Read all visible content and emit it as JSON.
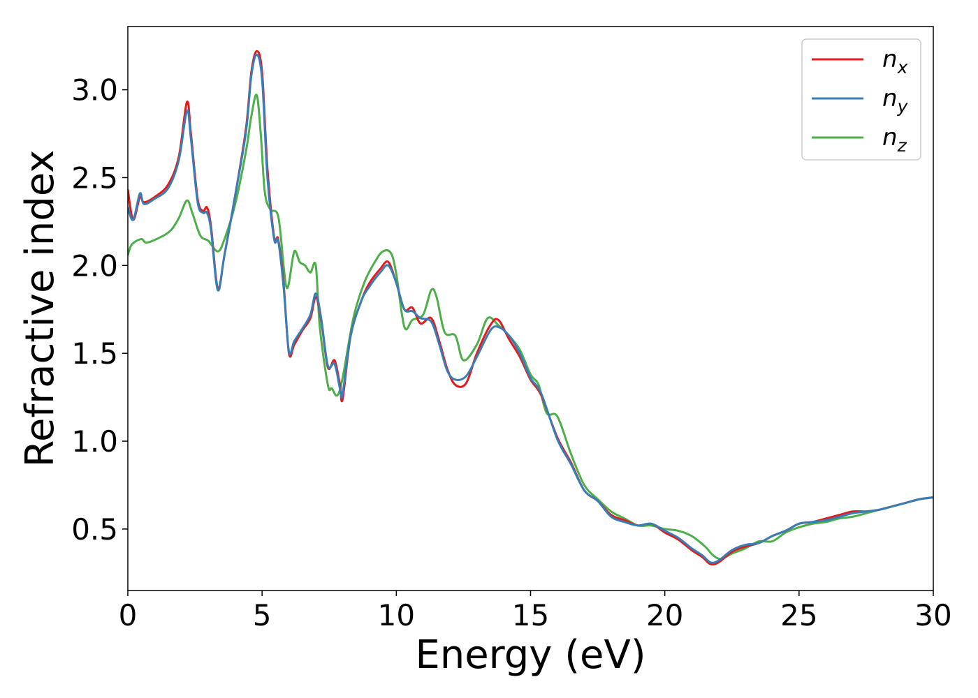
{
  "chart_data": {
    "type": "line",
    "title": "",
    "xlabel": "Energy (eV)",
    "ylabel": "Refractive index",
    "xlim": [
      0,
      30
    ],
    "ylim": [
      0.15,
      3.36
    ],
    "xticks": [
      0,
      5,
      10,
      15,
      20,
      25,
      30
    ],
    "xtick_labels": [
      "0",
      "5",
      "10",
      "15",
      "20",
      "25",
      "30"
    ],
    "yticks": [
      0.5,
      1.0,
      1.5,
      2.0,
      2.5,
      3.0
    ],
    "ytick_labels": [
      "0.5",
      "1.0",
      "1.5",
      "2.0",
      "2.5",
      "3.0"
    ],
    "grid": false,
    "legend_position": "top-right",
    "series": [
      {
        "name": "n_x",
        "label_base": "n",
        "label_sub": "x",
        "color": "#e41a1c",
        "x": [
          0,
          0.2,
          0.45,
          0.6,
          1.0,
          1.5,
          1.9,
          2.2,
          2.35,
          2.6,
          2.8,
          2.95,
          3.1,
          3.35,
          3.6,
          4.0,
          4.4,
          4.6,
          4.8,
          5.0,
          5.2,
          5.45,
          5.6,
          5.8,
          6.0,
          6.2,
          6.5,
          6.8,
          7.0,
          7.2,
          7.45,
          7.7,
          7.9,
          8.0,
          8.3,
          8.7,
          9.0,
          9.4,
          9.7,
          10.0,
          10.3,
          10.6,
          10.9,
          11.3,
          11.6,
          11.9,
          12.2,
          12.6,
          13.0,
          13.5,
          13.8,
          14.2,
          14.6,
          15.0,
          15.4,
          16.0,
          16.5,
          17.0,
          17.5,
          18.0,
          18.5,
          19.0,
          19.5,
          20.0,
          20.5,
          21.0,
          21.4,
          21.7,
          22.0,
          22.5,
          23.0,
          23.5,
          24.0,
          24.5,
          25.0,
          25.5,
          26.0,
          26.5,
          27.0,
          27.5,
          28.0,
          28.5,
          29.0,
          29.5,
          30.0
        ],
        "y": [
          2.43,
          2.26,
          2.39,
          2.36,
          2.39,
          2.46,
          2.62,
          2.93,
          2.75,
          2.38,
          2.31,
          2.33,
          2.22,
          1.87,
          2.06,
          2.4,
          2.78,
          3.1,
          3.22,
          3.1,
          2.55,
          2.16,
          2.15,
          1.9,
          1.5,
          1.55,
          1.63,
          1.7,
          1.82,
          1.69,
          1.42,
          1.46,
          1.32,
          1.24,
          1.6,
          1.8,
          1.9,
          1.98,
          2.02,
          1.9,
          1.75,
          1.76,
          1.67,
          1.7,
          1.57,
          1.41,
          1.32,
          1.33,
          1.5,
          1.66,
          1.69,
          1.58,
          1.48,
          1.35,
          1.26,
          1.02,
          0.88,
          0.72,
          0.66,
          0.58,
          0.55,
          0.52,
          0.53,
          0.48,
          0.44,
          0.38,
          0.34,
          0.3,
          0.31,
          0.37,
          0.4,
          0.42,
          0.46,
          0.49,
          0.53,
          0.54,
          0.56,
          0.58,
          0.6,
          0.6,
          0.61,
          0.63,
          0.65,
          0.67,
          0.68
        ]
      },
      {
        "name": "n_y",
        "label_base": "n",
        "label_sub": "y",
        "color": "#377eb8",
        "x": [
          0,
          0.2,
          0.45,
          0.6,
          1.0,
          1.5,
          1.9,
          2.2,
          2.35,
          2.6,
          2.8,
          2.95,
          3.1,
          3.35,
          3.6,
          4.0,
          4.4,
          4.6,
          4.8,
          5.0,
          5.2,
          5.45,
          5.6,
          5.8,
          6.0,
          6.2,
          6.5,
          6.8,
          7.0,
          7.2,
          7.45,
          7.7,
          7.9,
          8.0,
          8.3,
          8.7,
          9.0,
          9.4,
          9.7,
          10.0,
          10.3,
          10.6,
          10.9,
          11.3,
          11.6,
          11.9,
          12.2,
          12.6,
          13.0,
          13.5,
          13.8,
          14.2,
          14.6,
          15.0,
          15.4,
          16.0,
          16.5,
          17.0,
          17.5,
          18.0,
          18.5,
          19.0,
          19.5,
          20.0,
          20.5,
          21.0,
          21.4,
          21.7,
          22.0,
          22.5,
          23.0,
          23.5,
          24.0,
          24.5,
          25.0,
          25.5,
          26.0,
          26.5,
          27.0,
          27.5,
          28.0,
          28.5,
          29.0,
          29.5,
          30.0
        ],
        "y": [
          2.33,
          2.26,
          2.41,
          2.35,
          2.38,
          2.44,
          2.6,
          2.88,
          2.72,
          2.36,
          2.3,
          2.3,
          2.2,
          1.86,
          2.06,
          2.4,
          2.76,
          3.08,
          3.2,
          3.06,
          2.5,
          2.15,
          2.14,
          1.88,
          1.51,
          1.57,
          1.64,
          1.72,
          1.84,
          1.7,
          1.43,
          1.44,
          1.3,
          1.27,
          1.6,
          1.8,
          1.88,
          1.96,
          2.0,
          1.9,
          1.75,
          1.74,
          1.7,
          1.68,
          1.55,
          1.4,
          1.35,
          1.37,
          1.48,
          1.63,
          1.65,
          1.6,
          1.5,
          1.36,
          1.27,
          1.01,
          0.87,
          0.72,
          0.66,
          0.57,
          0.54,
          0.52,
          0.53,
          0.49,
          0.45,
          0.39,
          0.35,
          0.31,
          0.32,
          0.38,
          0.41,
          0.42,
          0.46,
          0.49,
          0.53,
          0.54,
          0.55,
          0.57,
          0.59,
          0.6,
          0.61,
          0.63,
          0.65,
          0.67,
          0.68
        ]
      },
      {
        "name": "n_z",
        "label_base": "n",
        "label_sub": "z",
        "color": "#4daf4a",
        "x": [
          0,
          0.15,
          0.5,
          0.7,
          1.2,
          1.6,
          1.9,
          2.2,
          2.4,
          2.7,
          3.0,
          3.35,
          3.6,
          4.0,
          4.4,
          4.6,
          4.8,
          4.95,
          5.1,
          5.3,
          5.6,
          5.8,
          5.9,
          6.0,
          6.2,
          6.4,
          6.6,
          6.8,
          7.0,
          7.15,
          7.45,
          7.6,
          7.8,
          8.0,
          8.4,
          8.8,
          9.2,
          9.5,
          9.8,
          10.0,
          10.3,
          10.6,
          11.0,
          11.3,
          11.5,
          11.8,
          12.2,
          12.5,
          13.0,
          13.4,
          13.8,
          14.2,
          14.6,
          15.0,
          15.3,
          15.6,
          16.0,
          16.5,
          17.0,
          17.5,
          18.0,
          18.5,
          19.0,
          19.5,
          20.0,
          20.5,
          21.0,
          21.5,
          21.8,
          22.1,
          22.5,
          23.0,
          23.5,
          24.0,
          24.5,
          25.0,
          25.5,
          26.0,
          26.5,
          27.0,
          27.5,
          28.0,
          28.5,
          29.0,
          29.5,
          30.0
        ],
        "y": [
          2.06,
          2.12,
          2.15,
          2.13,
          2.16,
          2.2,
          2.27,
          2.37,
          2.3,
          2.17,
          2.14,
          2.08,
          2.15,
          2.35,
          2.65,
          2.85,
          2.97,
          2.75,
          2.42,
          2.32,
          2.28,
          2.0,
          1.88,
          1.9,
          2.08,
          2.02,
          2.0,
          1.96,
          2.0,
          1.65,
          1.32,
          1.3,
          1.26,
          1.36,
          1.7,
          1.9,
          2.02,
          2.08,
          2.07,
          1.95,
          1.65,
          1.69,
          1.72,
          1.86,
          1.82,
          1.62,
          1.6,
          1.46,
          1.55,
          1.7,
          1.66,
          1.6,
          1.52,
          1.38,
          1.32,
          1.16,
          1.14,
          0.93,
          0.75,
          0.67,
          0.6,
          0.56,
          0.52,
          0.52,
          0.5,
          0.49,
          0.46,
          0.4,
          0.35,
          0.33,
          0.36,
          0.39,
          0.43,
          0.43,
          0.48,
          0.51,
          0.53,
          0.54,
          0.56,
          0.57,
          0.59,
          0.61,
          0.63,
          0.65,
          0.67,
          0.68
        ]
      }
    ]
  }
}
